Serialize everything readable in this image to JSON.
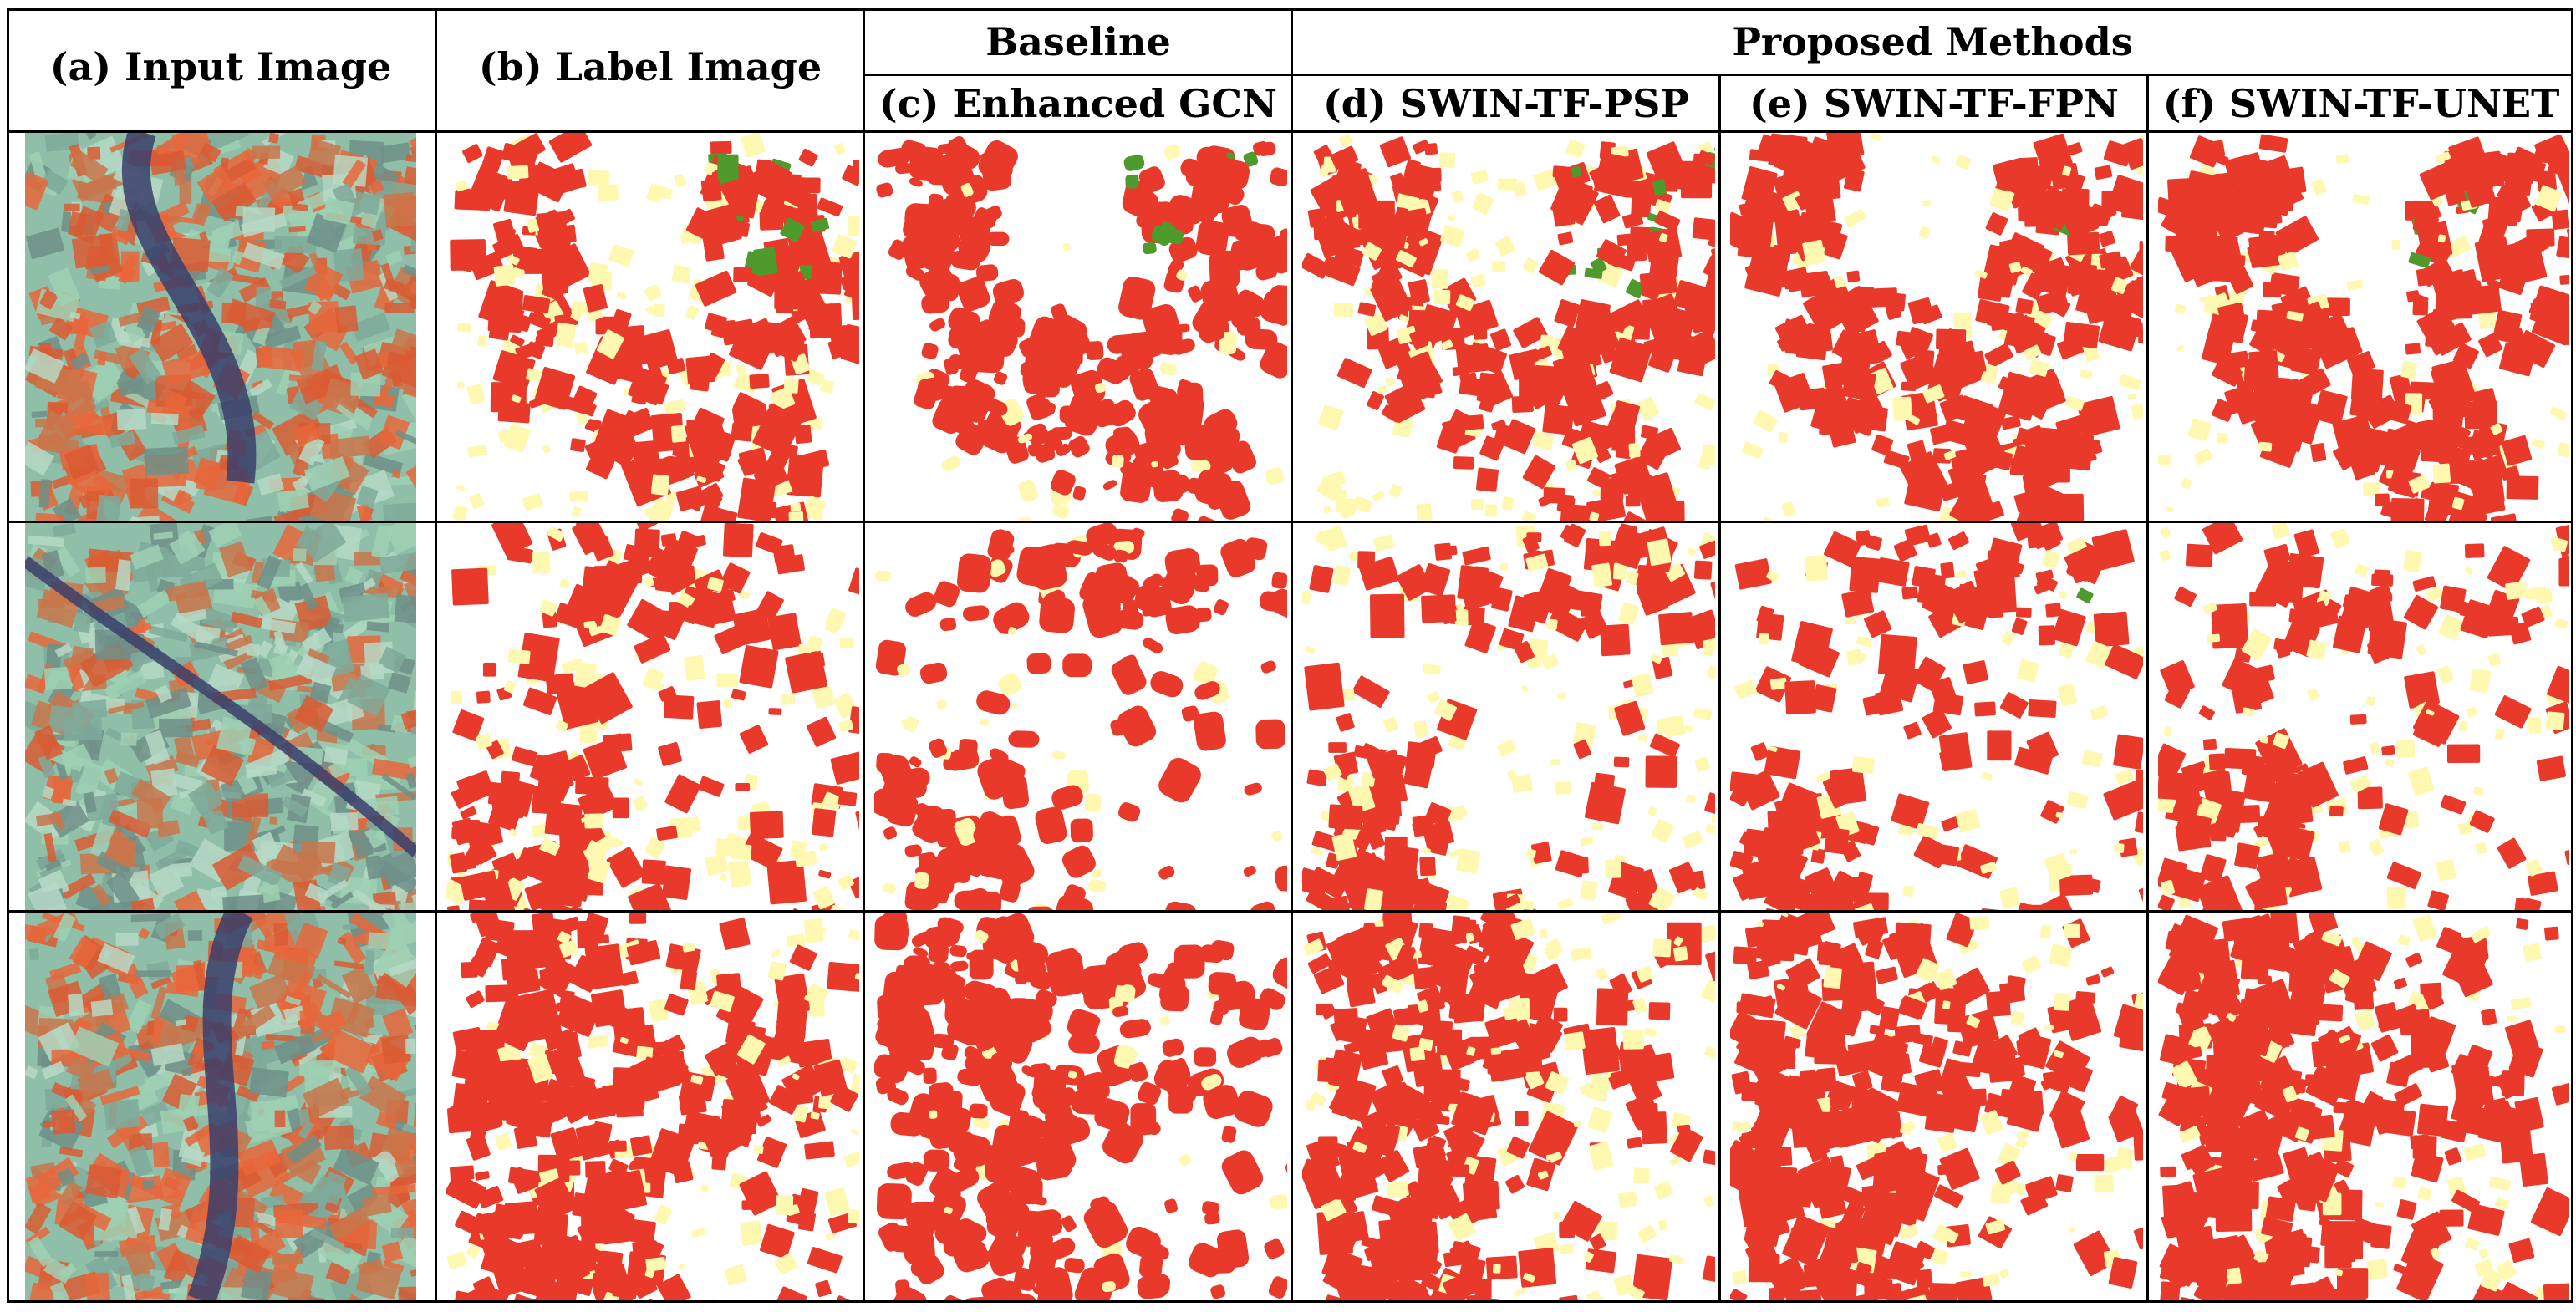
{
  "headers": {
    "input": "(a)  Input Image",
    "label": "(b)  Label Image",
    "baseline": "Baseline",
    "proposed": "Proposed Methods",
    "gcn": "(c)  Enhanced GCN",
    "psp": "(d)  SWIN-TF-PSP",
    "fpn": "(e)  SWIN-TF-FPN",
    "unet": "(f)  SWIN-TF-UNET"
  },
  "rows": [
    "row-1",
    "row-2",
    "row-3"
  ],
  "columns": [
    "input-image",
    "label-image",
    "enhanced-gcn",
    "swin-tf-psp",
    "swin-tf-fpn",
    "swin-tf-unet"
  ],
  "colors": {
    "class_red": "#e8392a",
    "class_green": "#4e9a2c",
    "class_yellow": "#fff8b0",
    "background": "#ffffff",
    "satellite_base": "#8fbfa8",
    "satellite_orange": "#e8663a",
    "satellite_river": "#3a3e6b",
    "grid_line": "#000000"
  }
}
